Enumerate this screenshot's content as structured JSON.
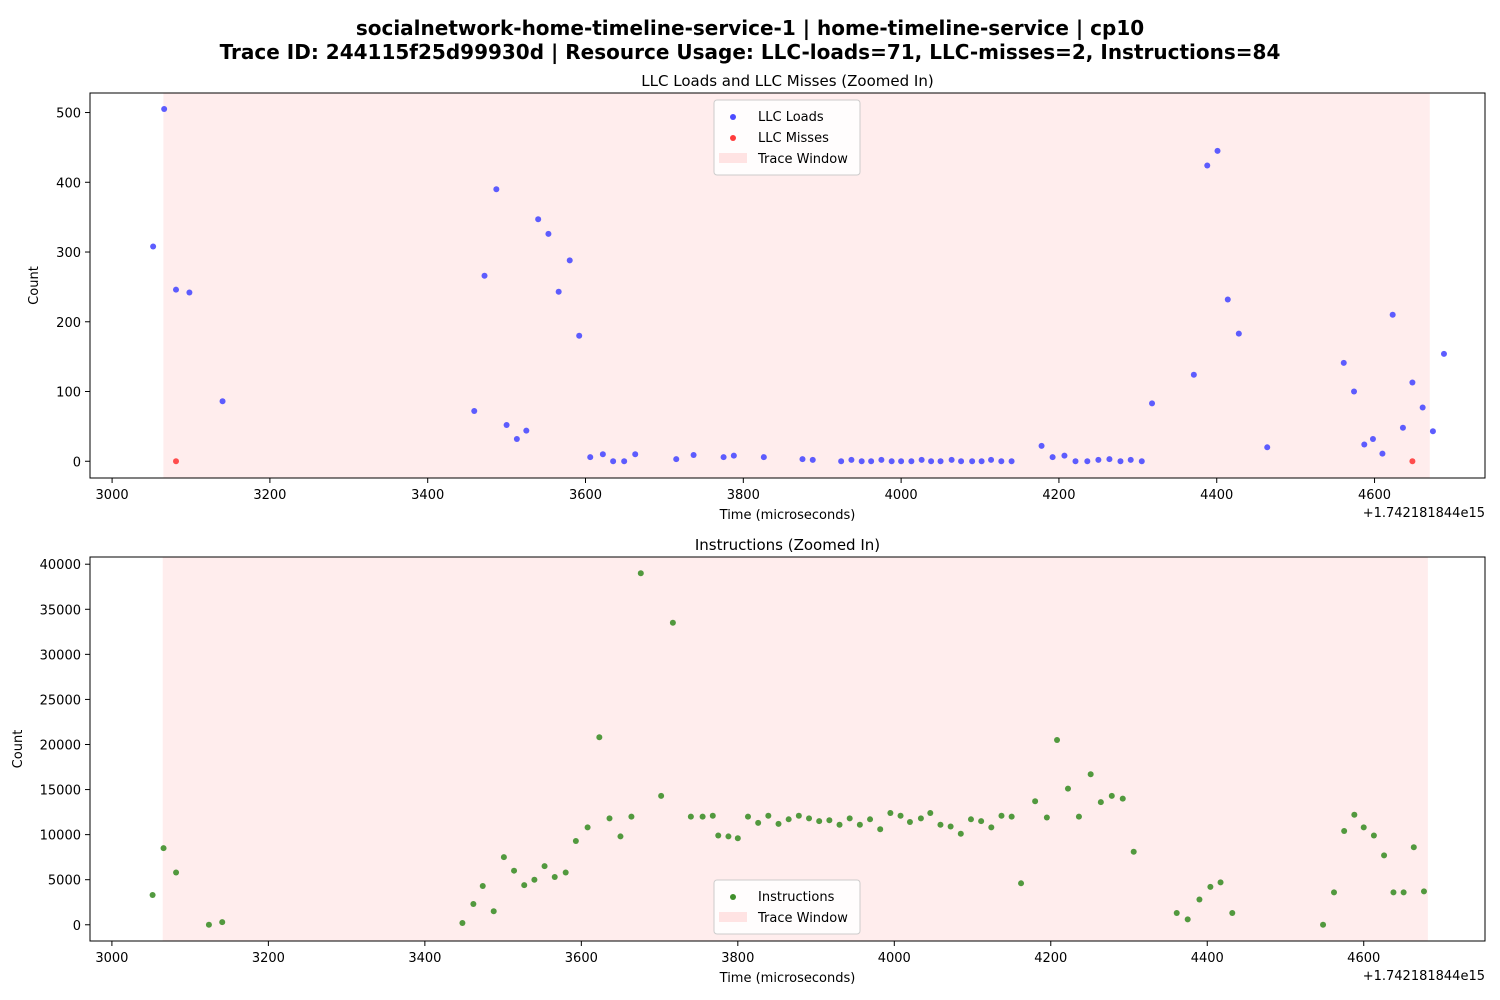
{
  "figure": {
    "title_line1": "socialnetwork-home-timeline-service-1 | home-timeline-service | cp10",
    "title_line2": "Trace ID: 244115f25d99930d | Resource Usage: LLC-loads=71, LLC-misses=2, Instructions=84"
  },
  "chart_data": [
    {
      "type": "scatter",
      "title": "LLC Loads and LLC Misses (Zoomed In)",
      "xlabel": "Time (microseconds)",
      "ylabel": "Count",
      "x_offset_label": "+1.742181844e15",
      "xlim": [
        2972,
        4740
      ],
      "ylim": [
        -24,
        528
      ],
      "xticks": [
        3000,
        3200,
        3400,
        3600,
        3800,
        4000,
        4200,
        4400,
        4600
      ],
      "yticks": [
        0,
        100,
        200,
        300,
        400,
        500
      ],
      "legend_position": "top-center",
      "legend": [
        "LLC Loads",
        "LLC Misses",
        "Trace Window"
      ],
      "trace_window": [
        3065,
        4670
      ],
      "colors": {
        "loads": "#0000ff",
        "misses": "#ff0000",
        "window": "#ffcccc"
      },
      "series": [
        {
          "name": "LLC Loads",
          "points": [
            [
              3052,
              308
            ],
            [
              3066,
              505
            ],
            [
              3081,
              246
            ],
            [
              3098,
              242
            ],
            [
              3140,
              86
            ],
            [
              3459,
              72
            ],
            [
              3472,
              266
            ],
            [
              3487,
              390
            ],
            [
              3500,
              52
            ],
            [
              3513,
              32
            ],
            [
              3525,
              44
            ],
            [
              3540,
              347
            ],
            [
              3553,
              326
            ],
            [
              3566,
              243
            ],
            [
              3580,
              288
            ],
            [
              3592,
              180
            ],
            [
              3606,
              6
            ],
            [
              3622,
              10
            ],
            [
              3635,
              0
            ],
            [
              3649,
              0
            ],
            [
              3663,
              10
            ],
            [
              3715,
              3
            ],
            [
              3737,
              9
            ],
            [
              3775,
              6
            ],
            [
              3788,
              8
            ],
            [
              3826,
              6
            ],
            [
              3875,
              3
            ],
            [
              3888,
              2
            ],
            [
              3924,
              0
            ],
            [
              3937,
              2
            ],
            [
              3950,
              0
            ],
            [
              3962,
              0
            ],
            [
              3975,
              2
            ],
            [
              3988,
              0
            ],
            [
              4000,
              0
            ],
            [
              4013,
              0
            ],
            [
              4026,
              2
            ],
            [
              4038,
              0
            ],
            [
              4050,
              0
            ],
            [
              4064,
              2
            ],
            [
              4076,
              0
            ],
            [
              4090,
              0
            ],
            [
              4102,
              0
            ],
            [
              4114,
              2
            ],
            [
              4127,
              0
            ],
            [
              4140,
              0
            ],
            [
              4178,
              22
            ],
            [
              4192,
              6
            ],
            [
              4207,
              8
            ],
            [
              4221,
              0
            ],
            [
              4236,
              0
            ],
            [
              4250,
              2
            ],
            [
              4264,
              3
            ],
            [
              4278,
              0
            ],
            [
              4291,
              2
            ],
            [
              4305,
              0
            ],
            [
              4318,
              83
            ],
            [
              4371,
              124
            ],
            [
              4388,
              424
            ],
            [
              4401,
              445
            ],
            [
              4414,
              232
            ],
            [
              4428,
              183
            ],
            [
              4464,
              20
            ],
            [
              4561,
              141
            ],
            [
              4574,
              100
            ],
            [
              4587,
              24
            ],
            [
              4598,
              32
            ],
            [
              4610,
              11
            ],
            [
              4623,
              210
            ],
            [
              4636,
              48
            ],
            [
              4648,
              113
            ],
            [
              4661,
              77
            ],
            [
              4674,
              43
            ],
            [
              4688,
              154
            ]
          ]
        },
        {
          "name": "LLC Misses",
          "points": [
            [
              3081,
              0
            ],
            [
              4648,
              0
            ]
          ]
        }
      ]
    },
    {
      "type": "scatter",
      "title": "Instructions (Zoomed In)",
      "xlabel": "Time (microseconds)",
      "ylabel": "Count",
      "x_offset_label": "+1.742181844e15",
      "xlim": [
        2972,
        4755
      ],
      "ylim": [
        -1800,
        40800
      ],
      "xticks": [
        3000,
        3200,
        3400,
        3600,
        3800,
        4000,
        4200,
        4400,
        4600
      ],
      "yticks": [
        0,
        5000,
        10000,
        15000,
        20000,
        25000,
        30000,
        35000,
        40000
      ],
      "legend_position": "bottom-center",
      "legend": [
        "Instructions",
        "Trace Window"
      ],
      "trace_window": [
        3065,
        4682
      ],
      "colors": {
        "instructions": "#2e8b22",
        "window": "#ffcccc"
      },
      "series": [
        {
          "name": "Instructions",
          "points": [
            [
              3052,
              3300
            ],
            [
              3066,
              8500
            ],
            [
              3082,
              5800
            ],
            [
              3124,
              0
            ],
            [
              3141,
              300
            ],
            [
              3448,
              200
            ],
            [
              3462,
              2300
            ],
            [
              3474,
              4300
            ],
            [
              3488,
              1500
            ],
            [
              3501,
              7500
            ],
            [
              3514,
              6000
            ],
            [
              3527,
              4400
            ],
            [
              3540,
              5000
            ],
            [
              3553,
              6500
            ],
            [
              3566,
              5300
            ],
            [
              3580,
              5800
            ],
            [
              3593,
              9300
            ],
            [
              3608,
              10800
            ],
            [
              3623,
              20800
            ],
            [
              3636,
              11800
            ],
            [
              3650,
              9800
            ],
            [
              3664,
              12000
            ],
            [
              3676,
              39000
            ],
            [
              3702,
              14300
            ],
            [
              3717,
              33500
            ],
            [
              3740,
              12000
            ],
            [
              3755,
              12000
            ],
            [
              3768,
              12100
            ],
            [
              3775,
              9900
            ],
            [
              3788,
              9800
            ],
            [
              3800,
              9600
            ],
            [
              3813,
              12000
            ],
            [
              3826,
              11300
            ],
            [
              3839,
              12100
            ],
            [
              3852,
              11200
            ],
            [
              3865,
              11700
            ],
            [
              3878,
              12100
            ],
            [
              3891,
              11800
            ],
            [
              3904,
              11500
            ],
            [
              3917,
              11600
            ],
            [
              3930,
              11100
            ],
            [
              3943,
              11800
            ],
            [
              3956,
              11100
            ],
            [
              3969,
              11700
            ],
            [
              3982,
              10600
            ],
            [
              3995,
              12400
            ],
            [
              4008,
              12100
            ],
            [
              4020,
              11400
            ],
            [
              4034,
              11800
            ],
            [
              4046,
              12400
            ],
            [
              4059,
              11100
            ],
            [
              4072,
              10900
            ],
            [
              4085,
              10100
            ],
            [
              4098,
              11700
            ],
            [
              4111,
              11500
            ],
            [
              4124,
              10800
            ],
            [
              4137,
              12100
            ],
            [
              4150,
              12000
            ],
            [
              4162,
              4600
            ],
            [
              4180,
              13700
            ],
            [
              4195,
              11900
            ],
            [
              4208,
              20500
            ],
            [
              4222,
              15100
            ],
            [
              4236,
              12000
            ],
            [
              4251,
              16700
            ],
            [
              4264,
              13600
            ],
            [
              4278,
              14300
            ],
            [
              4292,
              14000
            ],
            [
              4306,
              8100
            ],
            [
              4361,
              1300
            ],
            [
              4375,
              600
            ],
            [
              4390,
              2800
            ],
            [
              4404,
              4200
            ],
            [
              4417,
              4700
            ],
            [
              4432,
              1300
            ],
            [
              4548,
              0
            ],
            [
              4562,
              3600
            ],
            [
              4575,
              10400
            ],
            [
              4588,
              12200
            ],
            [
              4600,
              10800
            ],
            [
              4613,
              9900
            ],
            [
              4626,
              7700
            ],
            [
              4638,
              3600
            ],
            [
              4651,
              3600
            ],
            [
              4664,
              8600
            ],
            [
              4677,
              3700
            ]
          ]
        }
      ]
    }
  ]
}
